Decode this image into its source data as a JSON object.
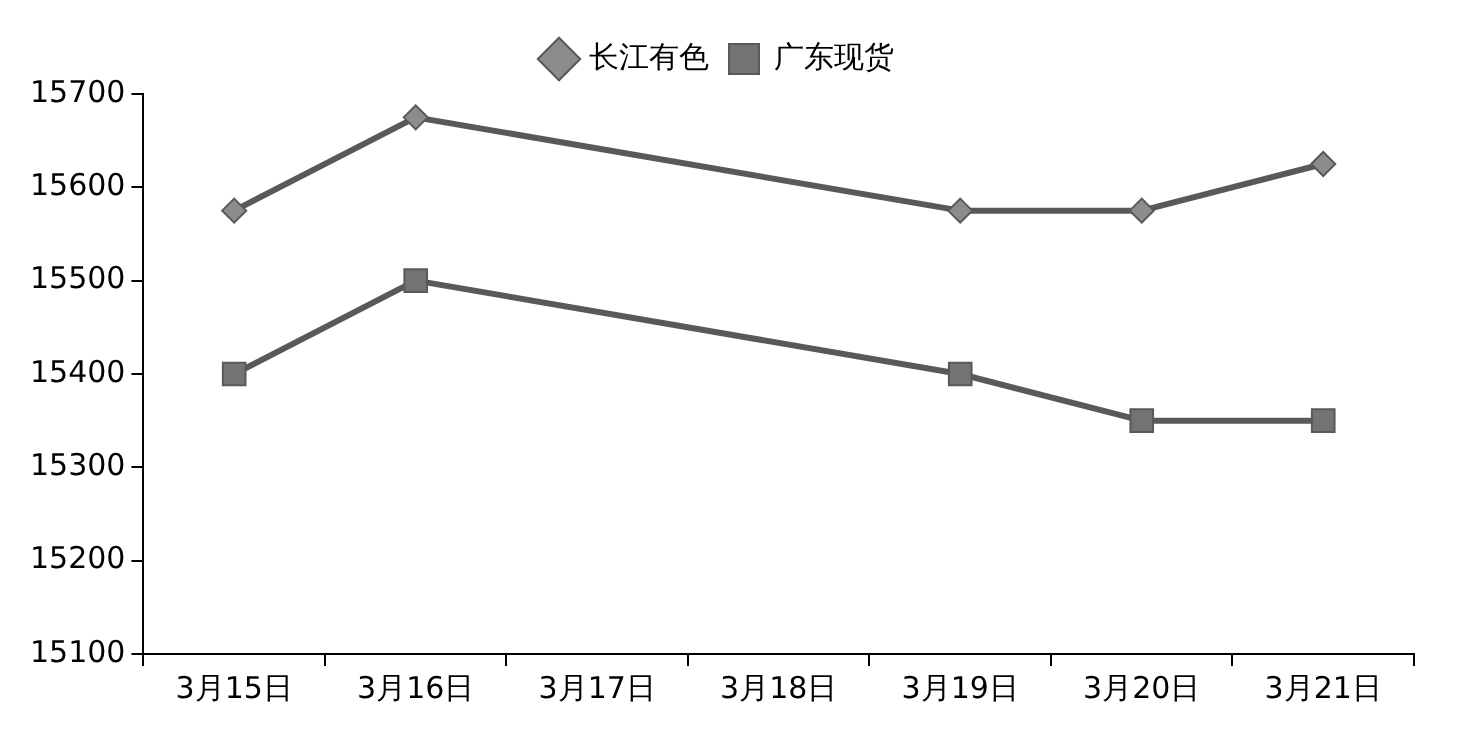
{
  "chart_data": {
    "type": "line",
    "categories": [
      "3月15日",
      "3月16日",
      "3月17日",
      "3月18日",
      "3月19日",
      "3月20日",
      "3月21日"
    ],
    "series": [
      {
        "name": "长江有色",
        "color": "#595959",
        "marker": "diamond",
        "values": [
          15575,
          15675,
          null,
          null,
          15575,
          15575,
          15625
        ]
      },
      {
        "name": "广东现货",
        "color": "#595959",
        "marker": "square",
        "values": [
          15400,
          15500,
          null,
          null,
          15400,
          15350,
          15350
        ]
      }
    ],
    "ylim": [
      15100,
      15700
    ],
    "yticks": [
      15100,
      15200,
      15300,
      15400,
      15500,
      15600,
      15700
    ],
    "grid": false,
    "legend": "top"
  }
}
